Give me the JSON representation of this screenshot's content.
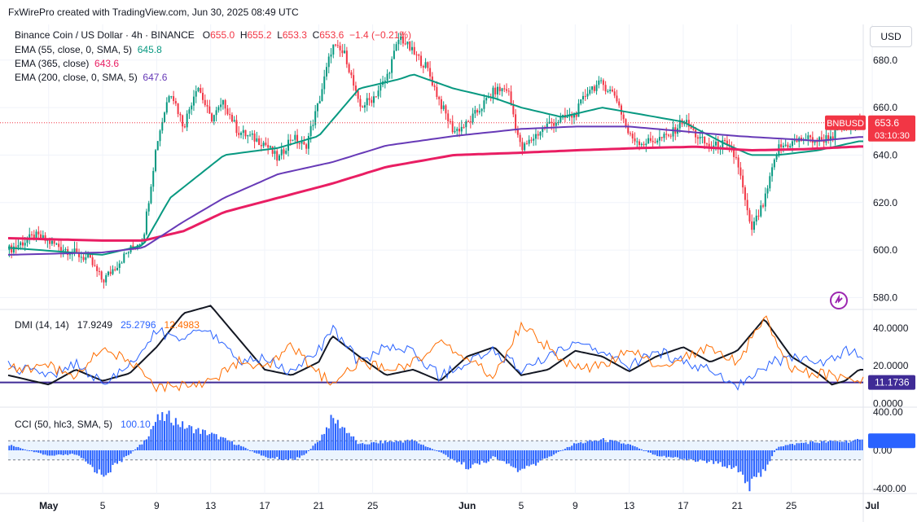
{
  "header": "FxWirePro created with TradingView.com, Jun 30, 2025 08:49 UTC",
  "currency_button": "USD",
  "legend": {
    "symbol": "Binance Coin / US Dollar · 4h · BINANCE",
    "o_label": "O",
    "o": "655.0",
    "h_label": "H",
    "h": "655.2",
    "l_label": "L",
    "l": "653.3",
    "c_label": "C",
    "c": "653.6",
    "change": "−1.4 (−0.21%)",
    "ema55": "EMA (55, close, 0, SMA, 5)",
    "ema55_val": "645.8",
    "ema365": "EMA (365, close)",
    "ema365_val": "643.6",
    "ema200": "EMA (200, close, 0, SMA, 5)",
    "ema200_val": "647.6",
    "dmi": "DMI (14, 14)",
    "dmi_adx": "17.9249",
    "dmi_plus": "25.2796",
    "dmi_minus": "12.4983",
    "cci": "CCI (50, hlc3, SMA, 5)",
    "cci_val": "100.10"
  },
  "price_tag": {
    "symbol": "BNBUSD",
    "price": "653.6",
    "countdown": "03:10:30"
  },
  "dmi_line_tag": "11.1736",
  "colors": {
    "up": "#089981",
    "down": "#f23645",
    "ema55": "#089981",
    "ema365": "#e91e63",
    "ema200": "#673ab7",
    "adx": "#131722",
    "di_plus": "#2962ff",
    "di_minus": "#ff6d00",
    "cci": "#2962ff",
    "level": "#3f2b96"
  },
  "chart_data": [
    {
      "type": "candlestick",
      "pane": "price",
      "ylim": [
        575,
        695
      ],
      "y_ticks": [
        "680.0",
        "660.0",
        "640.0",
        "620.0",
        "600.0",
        "580.0"
      ],
      "x_ticks": [
        "May",
        "5",
        "9",
        "13",
        "17",
        "21",
        "25",
        "Jun",
        "5",
        "9",
        "13",
        "17",
        "21",
        "25",
        "Jul"
      ],
      "price_path": [
        [
          "Apr 28",
          600
        ],
        [
          "Apr 30",
          606
        ],
        [
          "May 2",
          601
        ],
        [
          "May 4",
          596
        ],
        [
          "May 5",
          587
        ],
        [
          "May 7",
          600
        ],
        [
          "May 8",
          605
        ],
        [
          "May 9",
          645
        ],
        [
          "May 10",
          668
        ],
        [
          "May 11",
          652
        ],
        [
          "May 12",
          670
        ],
        [
          "May 13",
          655
        ],
        [
          "May 14",
          662
        ],
        [
          "May 15",
          650
        ],
        [
          "May 17",
          645
        ],
        [
          "May 18",
          638
        ],
        [
          "May 19",
          648
        ],
        [
          "May 20",
          643
        ],
        [
          "May 21",
          662
        ],
        [
          "May 22",
          686
        ],
        [
          "May 23",
          682
        ],
        [
          "May 24",
          660
        ],
        [
          "May 25",
          664
        ],
        [
          "May 26",
          672
        ],
        [
          "May 27",
          690
        ],
        [
          "May 28",
          683
        ],
        [
          "May 29",
          677
        ],
        [
          "May 30",
          662
        ],
        [
          "May 31",
          650
        ],
        [
          "Jun 1",
          653
        ],
        [
          "Jun 2",
          660
        ],
        [
          "Jun 3",
          667
        ],
        [
          "Jun 4",
          668
        ],
        [
          "Jun 5",
          642
        ],
        [
          "Jun 6",
          648
        ],
        [
          "Jun 7",
          653
        ],
        [
          "Jun 8",
          655
        ],
        [
          "Jun 9",
          657
        ],
        [
          "Jun 10",
          668
        ],
        [
          "Jun 11",
          670
        ],
        [
          "Jun 12",
          665
        ],
        [
          "Jun 13",
          648
        ],
        [
          "Jun 14",
          645
        ],
        [
          "Jun 16",
          648
        ],
        [
          "Jun 17",
          655
        ],
        [
          "Jun 18",
          648
        ],
        [
          "Jun 19",
          643
        ],
        [
          "Jun 20",
          645
        ],
        [
          "Jun 21",
          638
        ],
        [
          "Jun 22",
          608
        ],
        [
          "Jun 23",
          620
        ],
        [
          "Jun 24",
          643
        ],
        [
          "Jun 25",
          645
        ],
        [
          "Jun 26",
          647
        ],
        [
          "Jun 27",
          646
        ],
        [
          "Jun 28",
          648
        ],
        [
          "Jun 29",
          652
        ],
        [
          "Jun 30",
          653.6
        ]
      ],
      "series": [
        {
          "name": "EMA (55, close, 0, SMA, 5)",
          "points": [
            [
              "Apr 28",
              601
            ],
            [
              "May 5",
              598
            ],
            [
              "May 8",
              602
            ],
            [
              "May 10",
              622
            ],
            [
              "May 14",
              640
            ],
            [
              "May 18",
              643
            ],
            [
              "May 21",
              648
            ],
            [
              "May 24",
              668
            ],
            [
              "May 27",
              672
            ],
            [
              "May 28",
              674
            ],
            [
              "May 31",
              668
            ],
            [
              "Jun 3",
              664
            ],
            [
              "Jun 5",
              660
            ],
            [
              "Jun 8",
              656
            ],
            [
              "Jun 11",
              660
            ],
            [
              "Jun 14",
              657
            ],
            [
              "Jun 17",
              654
            ],
            [
              "Jun 20",
              645
            ],
            [
              "Jun 22",
              640
            ],
            [
              "Jun 24",
              640
            ],
            [
              "Jun 27",
              642
            ],
            [
              "Jun 30",
              645.8
            ]
          ]
        },
        {
          "name": "EMA (365, close)",
          "points": [
            [
              "Apr 28",
              605
            ],
            [
              "May 5",
              604
            ],
            [
              "May 8",
              604
            ],
            [
              "May 11",
              608
            ],
            [
              "May 14",
              616
            ],
            [
              "May 18",
              622
            ],
            [
              "May 22",
              628
            ],
            [
              "May 26",
              635
            ],
            [
              "May 31",
              640
            ],
            [
              "Jun 5",
              641
            ],
            [
              "Jun 9",
              642
            ],
            [
              "Jun 14",
              643
            ],
            [
              "Jun 18",
              643.5
            ],
            [
              "Jun 22",
              642
            ],
            [
              "Jun 26",
              642.5
            ],
            [
              "Jun 30",
              643.6
            ]
          ]
        },
        {
          "name": "EMA (200, close, 0, SMA, 5)",
          "points": [
            [
              "Apr 28",
              598
            ],
            [
              "May 5",
              599
            ],
            [
              "May 8",
              601
            ],
            [
              "May 11",
              612
            ],
            [
              "May 14",
              622
            ],
            [
              "May 18",
              632
            ],
            [
              "May 22",
              637
            ],
            [
              "May 26",
              644
            ],
            [
              "May 31",
              648
            ],
            [
              "Jun 5",
              651
            ],
            [
              "Jun 9",
              652
            ],
            [
              "Jun 13",
              652
            ],
            [
              "Jun 17",
              650
            ],
            [
              "Jun 21",
              648
            ],
            [
              "Jun 24",
              647
            ],
            [
              "Jun 27",
              646
            ],
            [
              "Jun 30",
              647.6
            ]
          ]
        }
      ]
    },
    {
      "type": "line",
      "pane": "indicator",
      "title": "DMI (14, 14)",
      "ylim": [
        -2,
        50
      ],
      "y_ticks": [
        "40.0000",
        "20.0000",
        "0.0000"
      ],
      "hline": 11.1736,
      "series": [
        {
          "name": "ADX",
          "points": [
            [
              "Apr 28",
              15
            ],
            [
              "May 1",
              10
            ],
            [
              "May 3",
              18
            ],
            [
              "May 5",
              12
            ],
            [
              "May 7",
              16
            ],
            [
              "May 9",
              30
            ],
            [
              "May 11",
              48
            ],
            [
              "May 13",
              52
            ],
            [
              "May 15",
              35
            ],
            [
              "May 17",
              18
            ],
            [
              "May 19",
              15
            ],
            [
              "May 21",
              22
            ],
            [
              "May 22",
              36
            ],
            [
              "May 24",
              25
            ],
            [
              "May 26",
              15
            ],
            [
              "May 28",
              18
            ],
            [
              "May 30",
              12
            ],
            [
              "Jun 1",
              25
            ],
            [
              "Jun 3",
              30
            ],
            [
              "Jun 5",
              15
            ],
            [
              "Jun 7",
              18
            ],
            [
              "Jun 9",
              28
            ],
            [
              "Jun 11",
              25
            ],
            [
              "Jun 13",
              17
            ],
            [
              "Jun 15",
              25
            ],
            [
              "Jun 17",
              30
            ],
            [
              "Jun 19",
              22
            ],
            [
              "Jun 21",
              28
            ],
            [
              "Jun 23",
              45
            ],
            [
              "Jun 25",
              25
            ],
            [
              "Jun 27",
              16
            ],
            [
              "Jun 28",
              10
            ],
            [
              "Jun 29",
              12
            ],
            [
              "Jun 30",
              17.9249
            ]
          ]
        },
        {
          "name": "+DI",
          "points": [
            [
              "Apr 28",
              20
            ],
            [
              "May 1",
              14
            ],
            [
              "May 3",
              22
            ],
            [
              "May 5",
              10
            ],
            [
              "May 7",
              20
            ],
            [
              "May 9",
              38
            ],
            [
              "May 11",
              35
            ],
            [
              "May 13",
              38
            ],
            [
              "May 15",
              22
            ],
            [
              "May 17",
              24
            ],
            [
              "May 19",
              16
            ],
            [
              "May 21",
              28
            ],
            [
              "May 22",
              40
            ],
            [
              "May 24",
              22
            ],
            [
              "May 26",
              30
            ],
            [
              "May 28",
              28
            ],
            [
              "May 30",
              14
            ],
            [
              "Jun 1",
              22
            ],
            [
              "Jun 3",
              28
            ],
            [
              "Jun 5",
              18
            ],
            [
              "Jun 7",
              24
            ],
            [
              "Jun 9",
              32
            ],
            [
              "Jun 11",
              26
            ],
            [
              "Jun 13",
              20
            ],
            [
              "Jun 15",
              28
            ],
            [
              "Jun 17",
              22
            ],
            [
              "Jun 19",
              18
            ],
            [
              "Jun 21",
              10
            ],
            [
              "Jun 23",
              20
            ],
            [
              "Jun 25",
              25
            ],
            [
              "Jun 27",
              20
            ],
            [
              "Jun 29",
              28
            ],
            [
              "Jun 30",
              25.2796
            ]
          ]
        },
        {
          "name": "-DI",
          "points": [
            [
              "Apr 28",
              18
            ],
            [
              "May 1",
              20
            ],
            [
              "May 3",
              14
            ],
            [
              "May 5",
              30
            ],
            [
              "May 7",
              22
            ],
            [
              "May 9",
              8
            ],
            [
              "May 11",
              10
            ],
            [
              "May 13",
              12
            ],
            [
              "May 15",
              22
            ],
            [
              "May 17",
              18
            ],
            [
              "May 19",
              30
            ],
            [
              "May 21",
              16
            ],
            [
              "May 22",
              10
            ],
            [
              "May 24",
              22
            ],
            [
              "May 26",
              18
            ],
            [
              "May 28",
              22
            ],
            [
              "May 30",
              32
            ],
            [
              "Jun 1",
              24
            ],
            [
              "Jun 3",
              14
            ],
            [
              "Jun 5",
              42
            ],
            [
              "Jun 7",
              30
            ],
            [
              "Jun 9",
              18
            ],
            [
              "Jun 11",
              20
            ],
            [
              "Jun 13",
              28
            ],
            [
              "Jun 15",
              20
            ],
            [
              "Jun 17",
              24
            ],
            [
              "Jun 19",
              30
            ],
            [
              "Jun 21",
              22
            ],
            [
              "Jun 23",
              46
            ],
            [
              "Jun 25",
              18
            ],
            [
              "Jun 27",
              16
            ],
            [
              "Jun 29",
              14
            ],
            [
              "Jun 30",
              12.4983
            ]
          ]
        }
      ]
    },
    {
      "type": "bar",
      "pane": "indicator",
      "title": "CCI (50, hlc3, SMA, 5)",
      "ylim": [
        -450,
        450
      ],
      "y_ticks": [
        "400.00",
        "0.00",
        "-400.00"
      ],
      "band": [
        -100,
        100
      ],
      "profile": [
        [
          "Apr 28",
          60
        ],
        [
          "May 1",
          -60
        ],
        [
          "May 3",
          -40
        ],
        [
          "May 5",
          -260
        ],
        [
          "May 7",
          -40
        ],
        [
          "May 8",
          80
        ],
        [
          "May 9",
          320
        ],
        [
          "May 10",
          350
        ],
        [
          "May 11",
          250
        ],
        [
          "May 13",
          170
        ],
        [
          "May 15",
          60
        ],
        [
          "May 17",
          -70
        ],
        [
          "May 19",
          -100
        ],
        [
          "May 20",
          -40
        ],
        [
          "May 21",
          100
        ],
        [
          "May 22",
          330
        ],
        [
          "May 23",
          220
        ],
        [
          "May 24",
          60
        ],
        [
          "May 26",
          90
        ],
        [
          "May 28",
          100
        ],
        [
          "May 30",
          -20
        ],
        [
          "Jun 1",
          -170
        ],
        [
          "Jun 2",
          -140
        ],
        [
          "Jun 3",
          -70
        ],
        [
          "Jun 5",
          -220
        ],
        [
          "Jun 7",
          -70
        ],
        [
          "Jun 9",
          70
        ],
        [
          "Jun 11",
          110
        ],
        [
          "Jun 13",
          60
        ],
        [
          "Jun 15",
          -50
        ],
        [
          "Jun 17",
          -90
        ],
        [
          "Jun 19",
          -120
        ],
        [
          "Jun 21",
          -180
        ],
        [
          "Jun 22",
          -380
        ],
        [
          "Jun 23",
          -200
        ],
        [
          "Jun 24",
          40
        ],
        [
          "Jun 26",
          80
        ],
        [
          "Jun 28",
          90
        ],
        [
          "Jun 30",
          100.1
        ]
      ]
    }
  ]
}
